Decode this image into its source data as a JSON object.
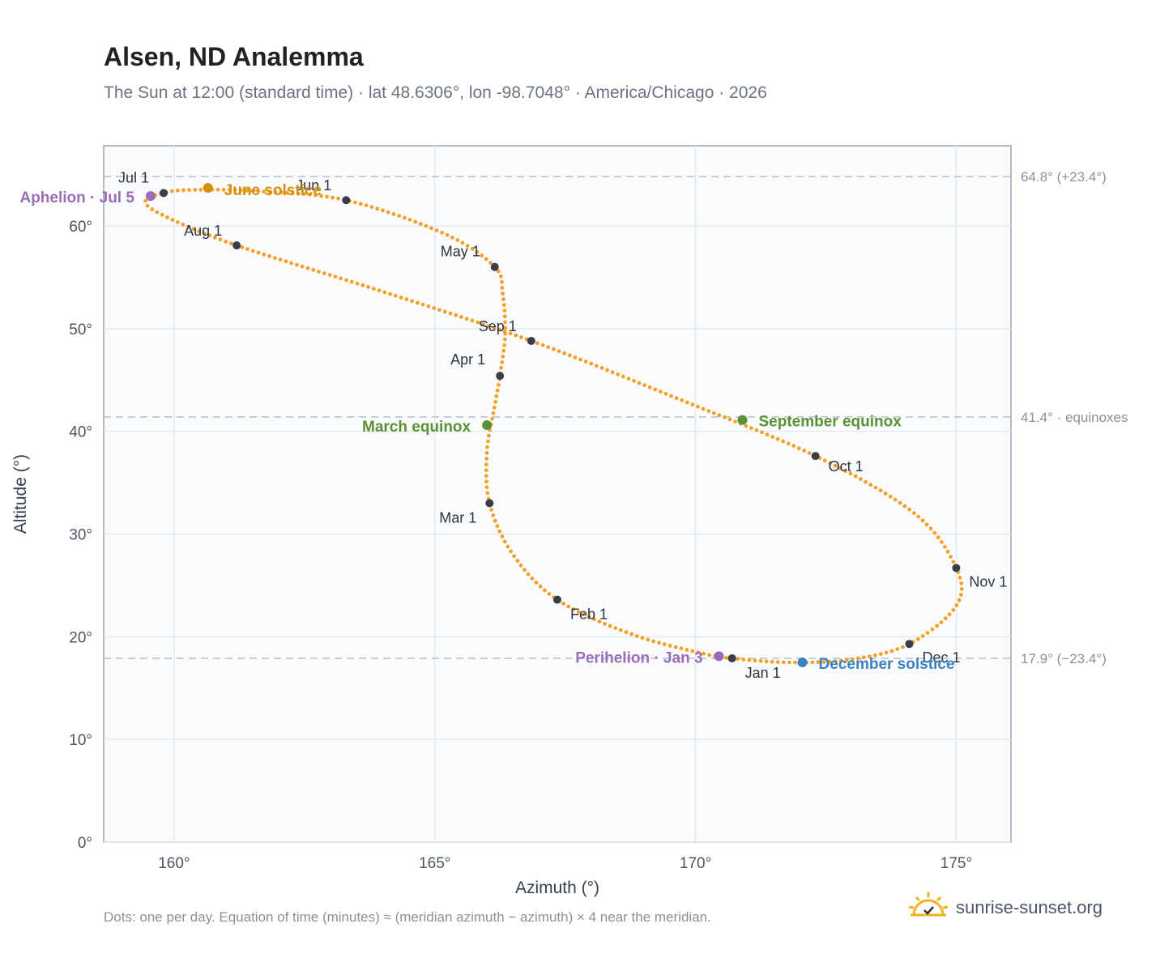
{
  "title": "Alsen, ND Analemma",
  "subtitle": "The Sun at 12:00 (standard time) · lat 48.6306°, lon -98.7048° · America/Chicago · 2026",
  "footnote": "Dots: one per day. Equation of time (minutes) ≈ (meridian azimuth − azimuth) × 4 near the meridian.",
  "brand": {
    "name": "sunrise-sunset.org",
    "icon": "sun-check-icon"
  },
  "colors": {
    "curve": "#f2a22a",
    "month_marker": "#3a3d45",
    "solstice_june": "#d4900a",
    "equinox": "#5a9135",
    "solstice_december": "#3b82c4",
    "apsis": "#9a6db5",
    "plot_bg": "#f9fbfd",
    "grid": "#e4e9ef",
    "ref_line": "#b8c0cc"
  },
  "chart_data": {
    "type": "scatter",
    "title": "Alsen, ND Analemma",
    "xlabel": "Azimuth (°)",
    "ylabel": "Altitude (°)",
    "xlim": [
      158.65,
      176.05
    ],
    "ylim": [
      0,
      67.8
    ],
    "xticks": [
      160,
      165,
      170,
      175
    ],
    "xtick_labels": [
      "160°",
      "165°",
      "170°",
      "175°"
    ],
    "yticks": [
      0,
      10,
      20,
      30,
      40,
      50,
      60
    ],
    "ytick_labels": [
      "0°",
      "10°",
      "20°",
      "30°",
      "40°",
      "50°",
      "60°"
    ],
    "grid": true,
    "reference_lines": [
      {
        "y": 64.8,
        "label": "64.8° (+23.4°)"
      },
      {
        "y": 41.4,
        "label": "41.4° · equinoxes"
      },
      {
        "y": 17.9,
        "label": "17.9° (−23.4°)"
      }
    ],
    "month_markers": [
      {
        "label": "Jan 1",
        "az": 170.7,
        "alt": 17.9
      },
      {
        "label": "Feb 1",
        "az": 167.35,
        "alt": 23.6
      },
      {
        "label": "Mar 1",
        "az": 166.05,
        "alt": 33.0
      },
      {
        "label": "Apr 1",
        "az": 166.25,
        "alt": 45.4
      },
      {
        "label": "May 1",
        "az": 166.15,
        "alt": 56.0
      },
      {
        "label": "Jun 1",
        "az": 163.3,
        "alt": 62.5
      },
      {
        "label": "Jul 1",
        "az": 159.8,
        "alt": 63.2
      },
      {
        "label": "Aug 1",
        "az": 161.2,
        "alt": 58.1
      },
      {
        "label": "Sep 1",
        "az": 166.85,
        "alt": 48.8
      },
      {
        "label": "Oct 1",
        "az": 172.3,
        "alt": 37.6
      },
      {
        "label": "Nov 1",
        "az": 175.0,
        "alt": 26.7
      },
      {
        "label": "Dec 1",
        "az": 174.1,
        "alt": 19.3
      }
    ],
    "events": [
      {
        "label": "June solstice",
        "az": 160.65,
        "alt": 63.7,
        "color": "#d4900a"
      },
      {
        "label": "March equinox",
        "az": 166.0,
        "alt": 40.6,
        "color": "#5a9135"
      },
      {
        "label": "September equinox",
        "az": 170.9,
        "alt": 41.1,
        "color": "#5a9135"
      },
      {
        "label": "December solstice",
        "az": 172.05,
        "alt": 17.5,
        "color": "#3b82c4"
      },
      {
        "label": "Aphelion · Jul 5",
        "az": 159.55,
        "alt": 62.9,
        "color": "#9a6db5"
      },
      {
        "label": "Perihelion · Jan 3",
        "az": 170.45,
        "alt": 18.1,
        "color": "#9a6db5"
      }
    ],
    "curve_keypoints": [
      [
        170.7,
        17.9
      ],
      [
        170.2,
        18.3
      ],
      [
        168.8,
        20.2
      ],
      [
        167.35,
        23.6
      ],
      [
        166.5,
        28.0
      ],
      [
        166.05,
        33.0
      ],
      [
        166.0,
        38.0
      ],
      [
        166.15,
        42.5
      ],
      [
        166.25,
        45.4
      ],
      [
        166.35,
        49.5
      ],
      [
        166.3,
        53.5
      ],
      [
        166.15,
        56.0
      ],
      [
        165.2,
        59.2
      ],
      [
        163.3,
        62.5
      ],
      [
        161.5,
        63.4
      ],
      [
        160.3,
        63.5
      ],
      [
        159.8,
        63.2
      ],
      [
        159.45,
        62.4
      ],
      [
        159.8,
        61.0
      ],
      [
        161.2,
        58.1
      ],
      [
        164.0,
        53.6
      ],
      [
        166.85,
        48.8
      ],
      [
        169.6,
        43.3
      ],
      [
        172.3,
        37.6
      ],
      [
        174.2,
        32.0
      ],
      [
        175.0,
        26.7
      ],
      [
        175.0,
        23.0
      ],
      [
        174.1,
        19.3
      ],
      [
        173.0,
        17.8
      ],
      [
        171.8,
        17.5
      ],
      [
        170.7,
        17.9
      ]
    ]
  }
}
